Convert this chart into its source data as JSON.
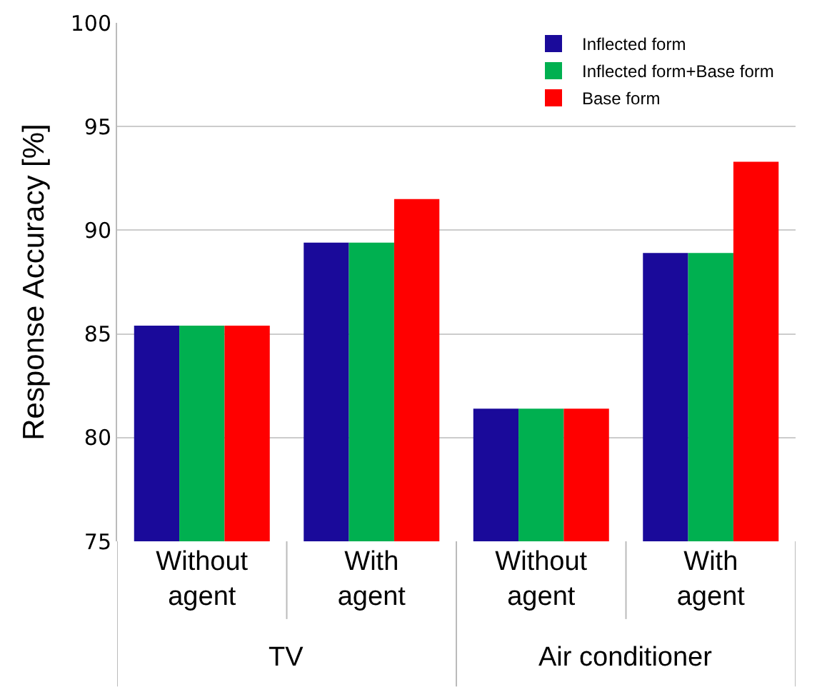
{
  "chart_data": {
    "type": "bar",
    "ylabel": "Response Accuracy [%]",
    "categories": [
      "Without agent",
      "With agent",
      "Without agent",
      "With agent"
    ],
    "series": [
      {
        "name": "Inflected form",
        "color": "#1a0a9a",
        "values": [
          85.4,
          89.4,
          81.4,
          88.9
        ]
      },
      {
        "name": "Inflected form+Base form",
        "color": "#00b050",
        "values": [
          85.4,
          89.4,
          81.4,
          88.9
        ]
      },
      {
        "name": "Base form",
        "color": "#ff0000",
        "values": [
          85.4,
          91.5,
          81.4,
          93.3
        ]
      }
    ],
    "annotations": [
      "TV",
      "Air conditioner"
    ],
    "ylim": [
      75,
      100
    ],
    "yticks": [
      75,
      80,
      85,
      90,
      95,
      100
    ],
    "grid": "y",
    "legend": "top right"
  }
}
